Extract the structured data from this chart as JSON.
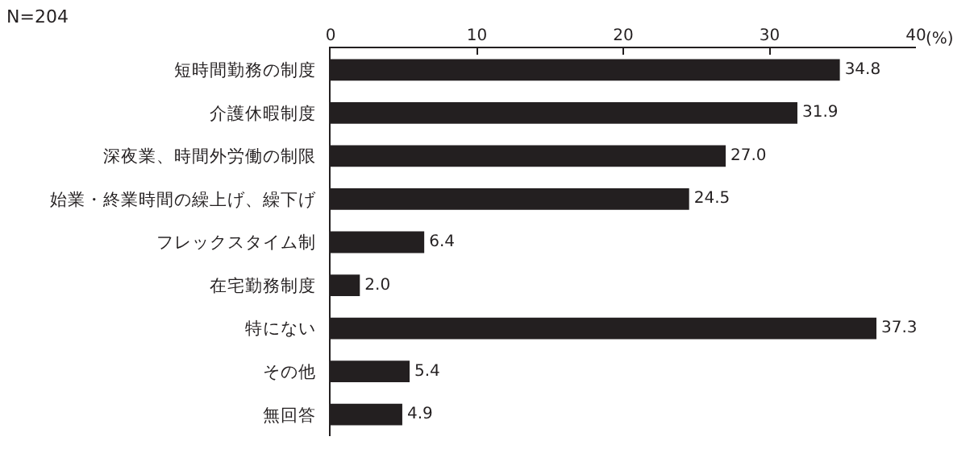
{
  "chart_data": {
    "type": "bar",
    "orientation": "horizontal",
    "categories": [
      "短時間勤務の制度",
      "介護休暇制度",
      "深夜業、時間外労働の制限",
      "始業・終業時間の繰上げ、繰下げ",
      "フレックスタイム制",
      "在宅勤務制度",
      "特にない",
      "その他",
      "無回答"
    ],
    "values": [
      34.8,
      31.9,
      27.0,
      24.5,
      6.4,
      2.0,
      37.3,
      5.4,
      4.9
    ],
    "value_labels": [
      "34.8",
      "31.9",
      "27.0",
      "24.5",
      "6.4",
      "2.0",
      "37.3",
      "5.4",
      "4.9"
    ],
    "color": "#231f20",
    "xlim": [
      0,
      40
    ],
    "xticks": [
      0,
      10,
      20,
      30,
      40
    ],
    "xlabel": "(%)",
    "annotations": [
      "N=204"
    ]
  }
}
